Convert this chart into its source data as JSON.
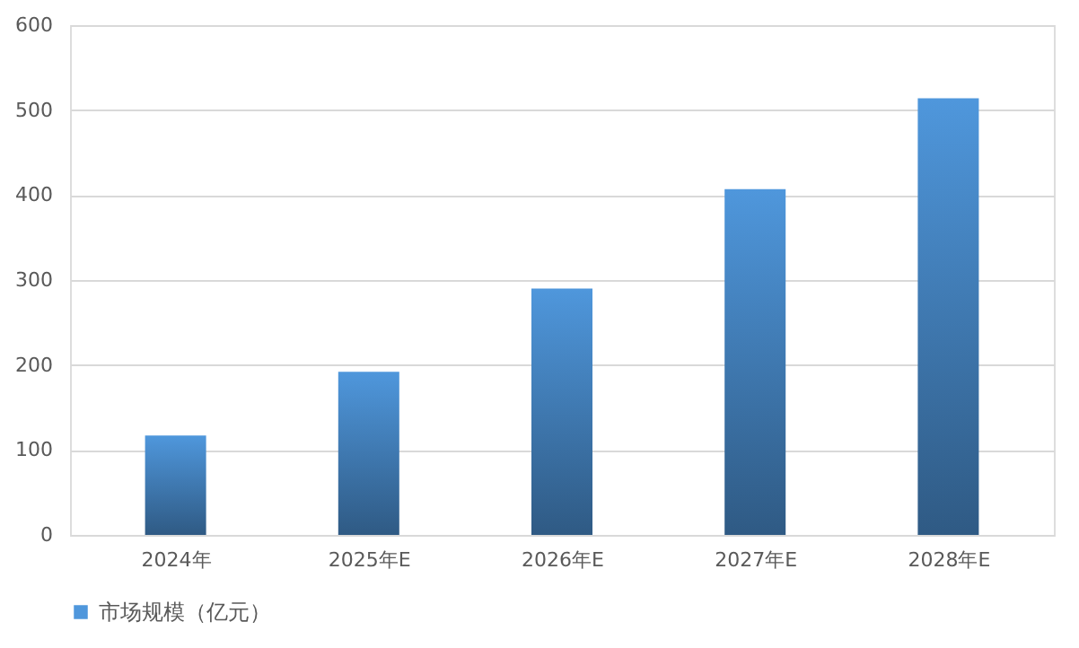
{
  "chart_data": {
    "type": "bar",
    "categories": [
      "2024年",
      "2025年E",
      "2026年E",
      "2027年E",
      "2028年E"
    ],
    "series": [
      {
        "name": "市场规模（亿元）",
        "color": "#4f97dc",
        "values": [
          117,
          192,
          290,
          407,
          514
        ]
      }
    ],
    "ylim": [
      0,
      600
    ],
    "yticks": [
      0,
      100,
      200,
      300,
      400,
      500,
      600
    ],
    "grid": "y",
    "legend": "bottom"
  }
}
